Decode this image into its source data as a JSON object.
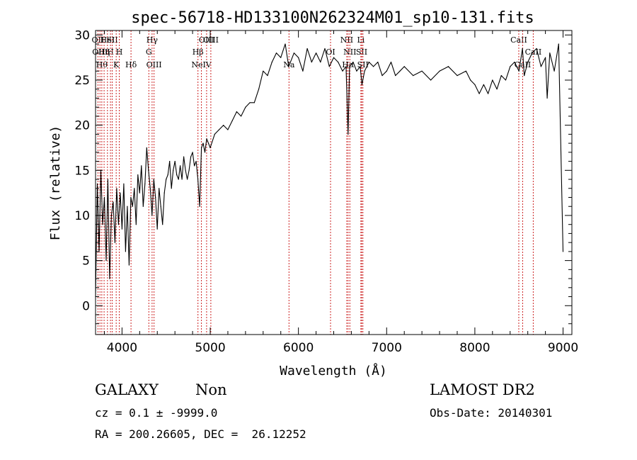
{
  "chart_data": {
    "type": "line",
    "title": "spec-56718-HD133100N262324M01_sp10-131.fits",
    "xlabel": "Wavelength (Å)",
    "ylabel": "Flux (relative)",
    "xlim": [
      3700,
      9100
    ],
    "ylim": [
      -3.2,
      30.5
    ],
    "xticks": [
      4000,
      5000,
      6000,
      7000,
      8000,
      9000
    ],
    "yticks": [
      0,
      5,
      10,
      15,
      20,
      25,
      30
    ],
    "grid": false,
    "series": [
      {
        "x": [
          3700,
          3720,
          3740,
          3760,
          3780,
          3800,
          3820,
          3840,
          3860,
          3880,
          3900,
          3920,
          3940,
          3960,
          3980,
          4000,
          4020,
          4040,
          4060,
          4080,
          4100,
          4120,
          4140,
          4160,
          4180,
          4200,
          4220,
          4240,
          4260,
          4280,
          4300,
          4320,
          4340,
          4360,
          4380,
          4400,
          4420,
          4440,
          4460,
          4480,
          4500,
          4520,
          4540,
          4560,
          4580,
          4600,
          4620,
          4640,
          4660,
          4680,
          4700,
          4720,
          4740,
          4760,
          4780,
          4800,
          4820,
          4840,
          4860,
          4880,
          4900,
          4920,
          4940,
          4960,
          4980,
          5000,
          5050,
          5100,
          5150,
          5200,
          5250,
          5300,
          5350,
          5400,
          5450,
          5500,
          5550,
          5600,
          5650,
          5700,
          5750,
          5800,
          5850,
          5890,
          5950,
          6000,
          6050,
          6100,
          6150,
          6200,
          6250,
          6300,
          6350,
          6400,
          6450,
          6500,
          6540,
          6563,
          6580,
          6620,
          6660,
          6700,
          6720,
          6750,
          6800,
          6850,
          6900,
          6950,
          7000,
          7050,
          7100,
          7150,
          7200,
          7300,
          7400,
          7500,
          7600,
          7700,
          7800,
          7900,
          7950,
          8000,
          8050,
          8100,
          8150,
          8200,
          8250,
          8300,
          8350,
          8400,
          8450,
          8500,
          8540,
          8560,
          8600,
          8650,
          8700,
          8750,
          8800,
          8820,
          8850,
          8900,
          8950,
          9000
        ],
        "y": [
          1.0,
          13.5,
          6.0,
          15.0,
          9.0,
          12.0,
          5.0,
          14.0,
          3.0,
          10.0,
          11.5,
          7.0,
          13.0,
          9.0,
          12.5,
          8.5,
          13.5,
          6.0,
          11.0,
          4.5,
          12.0,
          11.0,
          13.0,
          9.0,
          14.5,
          12.5,
          15.5,
          11.0,
          13.5,
          17.5,
          15.0,
          13.0,
          10.0,
          14.0,
          12.0,
          8.5,
          13.0,
          11.0,
          9.0,
          12.5,
          14.0,
          14.5,
          16.0,
          13.0,
          15.0,
          16.0,
          14.5,
          14.0,
          15.5,
          14.0,
          16.5,
          15.0,
          14.0,
          15.0,
          16.5,
          17.0,
          15.5,
          16.0,
          14.0,
          11.0,
          17.5,
          18.0,
          17.0,
          18.5,
          18.0,
          17.5,
          19.0,
          19.5,
          20.0,
          19.5,
          20.5,
          21.5,
          21.0,
          22.0,
          22.5,
          22.5,
          24.0,
          26.0,
          25.5,
          27.0,
          28.0,
          27.5,
          29.0,
          26.5,
          28.0,
          27.5,
          26.0,
          28.5,
          27.0,
          28.0,
          27.0,
          28.5,
          26.5,
          27.5,
          27.0,
          26.0,
          26.5,
          19.0,
          26.5,
          27.0,
          26.0,
          26.5,
          24.5,
          26.0,
          27.0,
          26.5,
          27.0,
          25.5,
          26.0,
          27.0,
          25.5,
          26.0,
          26.5,
          25.5,
          26.0,
          25.0,
          26.0,
          26.5,
          25.5,
          26.0,
          25.0,
          24.5,
          23.5,
          24.5,
          23.5,
          25.0,
          24.0,
          25.5,
          25.0,
          26.5,
          27.0,
          26.0,
          28.5,
          25.5,
          27.0,
          28.0,
          28.5,
          26.5,
          27.5,
          23.0,
          28.0,
          26.0,
          29.0,
          6.0
        ]
      }
    ],
    "lines": [
      {
        "x": 3727,
        "label": "OII",
        "row": 1
      },
      {
        "x": 3750,
        "label": "OIII",
        "row": 2
      },
      {
        "x": 3771,
        "label": "Hθ",
        "row": 3
      },
      {
        "x": 3797,
        "label": "Hη",
        "row": 2
      },
      {
        "x": 3835,
        "label": "HeI",
        "row": 1
      },
      {
        "x": 3869,
        "label": "H",
        "row": 2
      },
      {
        "x": 3889,
        "label": "SII",
        "row": 1
      },
      {
        "x": 3934,
        "label": "K",
        "row": 3
      },
      {
        "x": 3969,
        "label": "H",
        "row": 2
      },
      {
        "x": 4102,
        "label": "Hδ",
        "row": 3
      },
      {
        "x": 4304,
        "label": "G",
        "row": 2
      },
      {
        "x": 4341,
        "label": "Hγ",
        "row": 1
      },
      {
        "x": 4363,
        "label": "OIII",
        "row": 3
      },
      {
        "x": 4861,
        "label": "Hβ",
        "row": 2
      },
      {
        "x": 4959,
        "label": "OIII",
        "row": 1
      },
      {
        "x": 4900,
        "label": "NeIV",
        "row": 3
      },
      {
        "x": 5007,
        "label": "OIII",
        "row": 1
      },
      {
        "x": 5893,
        "label": "Na",
        "row": 3
      },
      {
        "x": 6364,
        "label": "OI",
        "row": 2
      },
      {
        "x": 6548,
        "label": "NII",
        "row": 1
      },
      {
        "x": 6563,
        "label": "Hα",
        "row": 3
      },
      {
        "x": 6583,
        "label": "NII",
        "row": 2
      },
      {
        "x": 6708,
        "label": "Li",
        "row": 1
      },
      {
        "x": 6717,
        "label": "SII",
        "row": 2
      },
      {
        "x": 6731,
        "label": "SII",
        "row": 3
      },
      {
        "x": 8498,
        "label": "CaII",
        "row": 1
      },
      {
        "x": 8542,
        "label": "CaII",
        "row": 3
      },
      {
        "x": 8662,
        "label": "CaII",
        "row": 2
      }
    ]
  },
  "footer": {
    "object_class": "GALAXY",
    "subclass": "Non",
    "survey": "LAMOST DR2",
    "cz": "cz = 0.1 ± -9999.0",
    "obs_date": "Obs-Date: 20140301",
    "coords": "RA = 200.26605, DEC =  26.12252"
  }
}
